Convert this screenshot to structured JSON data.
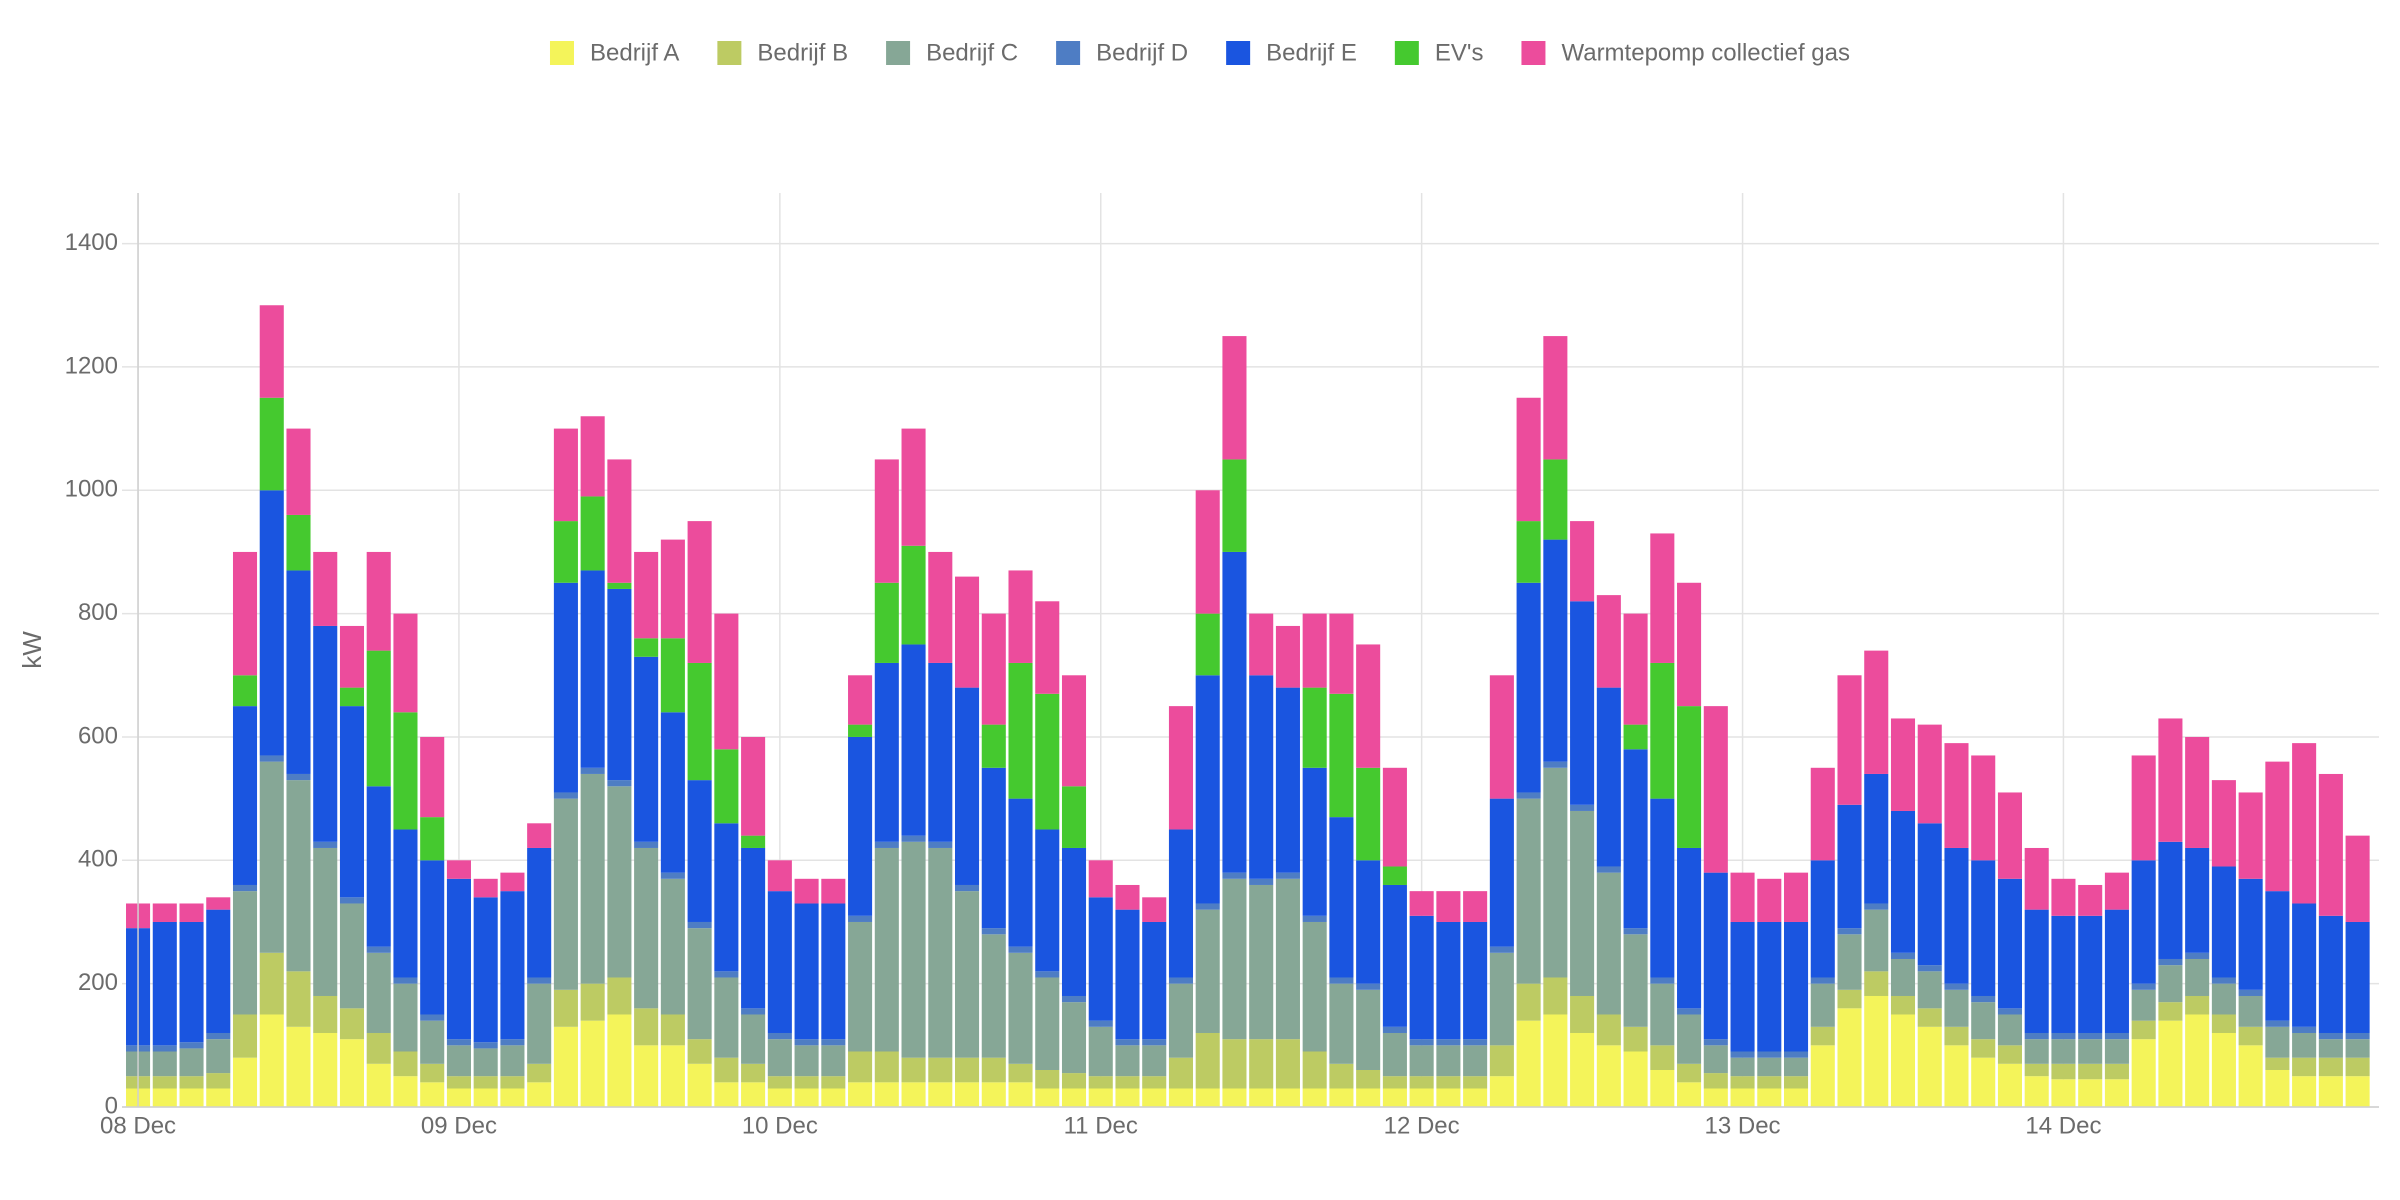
{
  "chart_data": {
    "type": "stacked_bar",
    "ylabel": "kW",
    "legend": "top",
    "grid": true,
    "x": [
      0,
      2,
      4,
      6,
      8,
      10,
      12,
      14,
      16,
      18,
      20,
      22,
      24,
      26,
      28,
      30,
      32,
      34,
      36,
      38,
      40,
      42,
      44,
      46,
      48,
      50,
      52,
      54,
      56,
      58,
      60,
      62,
      64,
      66,
      68,
      70,
      72,
      74,
      76,
      78,
      80,
      82,
      84,
      86,
      88,
      90,
      92,
      94,
      96,
      98,
      100,
      102,
      104,
      106,
      108,
      110,
      112,
      114,
      116,
      118,
      120,
      122,
      124,
      126,
      128,
      130,
      132,
      134,
      136,
      138,
      140,
      142,
      144,
      146,
      148,
      150,
      152,
      154,
      156,
      158,
      160,
      162,
      164,
      166
    ],
    "xlim": [
      -1.2,
      167.6
    ],
    "xticks": [
      {
        "value": 0,
        "label": "08 Dec"
      },
      {
        "value": 24,
        "label": "09 Dec"
      },
      {
        "value": 48,
        "label": "10 Dec"
      },
      {
        "value": 72,
        "label": "11 Dec"
      },
      {
        "value": 96,
        "label": "12 Dec"
      },
      {
        "value": 120,
        "label": "13 Dec"
      },
      {
        "value": 144,
        "label": "14 Dec"
      }
    ],
    "ylim": [
      0,
      1482
    ],
    "yticks": [
      0,
      200,
      400,
      600,
      800,
      1000,
      1200,
      1400
    ],
    "series": [
      {
        "name": "Bedrijf A",
        "color": "#f4f45a",
        "values": [
          30,
          30,
          30,
          30,
          80,
          150,
          130,
          120,
          110,
          70,
          50,
          40,
          30,
          30,
          30,
          40,
          130,
          140,
          150,
          100,
          100,
          70,
          40,
          40,
          30,
          30,
          30,
          40,
          40,
          40,
          40,
          40,
          40,
          40,
          30,
          30,
          30,
          30,
          30,
          30,
          30,
          30,
          30,
          30,
          30,
          30,
          30,
          30,
          30,
          30,
          30,
          50,
          140,
          150,
          120,
          100,
          90,
          60,
          40,
          30,
          30,
          30,
          30,
          100,
          160,
          180,
          150,
          130,
          100,
          80,
          70,
          50,
          45,
          45,
          45,
          110,
          140,
          150,
          120,
          100,
          60,
          50,
          50,
          50
        ]
      },
      {
        "name": "Bedrijf B",
        "color": "#bdcb63",
        "values": [
          20,
          20,
          20,
          25,
          70,
          100,
          90,
          60,
          50,
          50,
          40,
          30,
          20,
          20,
          20,
          30,
          60,
          60,
          60,
          60,
          50,
          40,
          40,
          30,
          20,
          20,
          20,
          50,
          50,
          40,
          40,
          40,
          40,
          30,
          30,
          25,
          20,
          20,
          20,
          50,
          90,
          80,
          80,
          80,
          60,
          40,
          30,
          20,
          20,
          20,
          20,
          50,
          60,
          60,
          60,
          50,
          40,
          40,
          30,
          25,
          20,
          20,
          20,
          30,
          30,
          40,
          30,
          30,
          30,
          30,
          30,
          20,
          25,
          25,
          25,
          30,
          30,
          30,
          30,
          30,
          20,
          30,
          30,
          30
        ]
      },
      {
        "name": "Bedrijf C",
        "color": "#86a796",
        "values": [
          40,
          40,
          45,
          55,
          200,
          310,
          310,
          240,
          170,
          130,
          110,
          70,
          50,
          45,
          50,
          130,
          310,
          340,
          310,
          260,
          220,
          180,
          130,
          80,
          60,
          50,
          50,
          210,
          330,
          350,
          340,
          270,
          200,
          180,
          150,
          115,
          80,
          50,
          50,
          120,
          200,
          260,
          250,
          260,
          210,
          130,
          130,
          70,
          50,
          50,
          50,
          150,
          300,
          340,
          300,
          230,
          150,
          100,
          80,
          45,
          30,
          30,
          30,
          70,
          90,
          100,
          60,
          60,
          60,
          60,
          50,
          40,
          40,
          40,
          40,
          50,
          60,
          60,
          50,
          50,
          50,
          40,
          30,
          30
        ]
      },
      {
        "name": "Bedrijf D",
        "color": "#4e7dc4",
        "values": [
          10,
          10,
          10,
          10,
          10,
          10,
          10,
          10,
          10,
          10,
          10,
          10,
          10,
          10,
          10,
          10,
          10,
          10,
          10,
          10,
          10,
          10,
          10,
          10,
          10,
          10,
          10,
          10,
          10,
          10,
          10,
          10,
          10,
          10,
          10,
          10,
          10,
          10,
          10,
          10,
          10,
          10,
          10,
          10,
          10,
          10,
          10,
          10,
          10,
          10,
          10,
          10,
          10,
          10,
          10,
          10,
          10,
          10,
          10,
          10,
          10,
          10,
          10,
          10,
          10,
          10,
          10,
          10,
          10,
          10,
          10,
          10,
          10,
          10,
          10,
          10,
          10,
          10,
          10,
          10,
          10,
          10,
          10,
          10
        ]
      },
      {
        "name": "Bedrijf E",
        "color": "#1a55e0",
        "values": [
          190,
          200,
          195,
          200,
          290,
          430,
          330,
          350,
          310,
          260,
          240,
          250,
          260,
          235,
          240,
          210,
          340,
          320,
          310,
          300,
          260,
          230,
          240,
          260,
          230,
          220,
          220,
          290,
          290,
          310,
          290,
          320,
          260,
          240,
          230,
          240,
          200,
          210,
          190,
          240,
          370,
          520,
          330,
          300,
          240,
          260,
          200,
          230,
          200,
          190,
          190,
          240,
          340,
          360,
          330,
          290,
          290,
          290,
          260,
          270,
          210,
          210,
          210,
          190,
          200,
          210,
          230,
          230,
          220,
          220,
          210,
          200,
          190,
          190,
          200,
          200,
          190,
          170,
          180,
          180,
          210,
          200,
          190,
          180
        ]
      },
      {
        "name": "EV's",
        "color": "#45c92f",
        "values": [
          0,
          0,
          0,
          0,
          50,
          150,
          90,
          0,
          30,
          220,
          190,
          70,
          0,
          0,
          0,
          0,
          100,
          120,
          10,
          30,
          120,
          190,
          120,
          20,
          0,
          0,
          0,
          20,
          130,
          160,
          0,
          0,
          70,
          220,
          220,
          100,
          0,
          0,
          0,
          0,
          100,
          150,
          0,
          0,
          130,
          200,
          150,
          30,
          0,
          0,
          0,
          0,
          100,
          130,
          0,
          0,
          40,
          220,
          230,
          0,
          0,
          0,
          0,
          0,
          0,
          0,
          0,
          0,
          0,
          0,
          0,
          0,
          0,
          0,
          0,
          0,
          0,
          0,
          0,
          0,
          0,
          0,
          0,
          0
        ]
      },
      {
        "name": "Warmtepomp collectief gas",
        "color": "#ec4c9c",
        "values": [
          40,
          30,
          30,
          20,
          200,
          150,
          140,
          120,
          100,
          160,
          160,
          130,
          30,
          30,
          30,
          40,
          150,
          130,
          200,
          140,
          160,
          230,
          220,
          160,
          50,
          40,
          40,
          80,
          200,
          190,
          180,
          180,
          180,
          150,
          150,
          180,
          60,
          40,
          40,
          200,
          200,
          200,
          100,
          100,
          120,
          130,
          200,
          160,
          40,
          50,
          50,
          200,
          200,
          200,
          130,
          150,
          180,
          210,
          200,
          270,
          80,
          70,
          80,
          150,
          210,
          200,
          150,
          160,
          170,
          170,
          140,
          100,
          60,
          50,
          60,
          170,
          200,
          180,
          140,
          140,
          210,
          260,
          230,
          140
        ]
      }
    ]
  }
}
